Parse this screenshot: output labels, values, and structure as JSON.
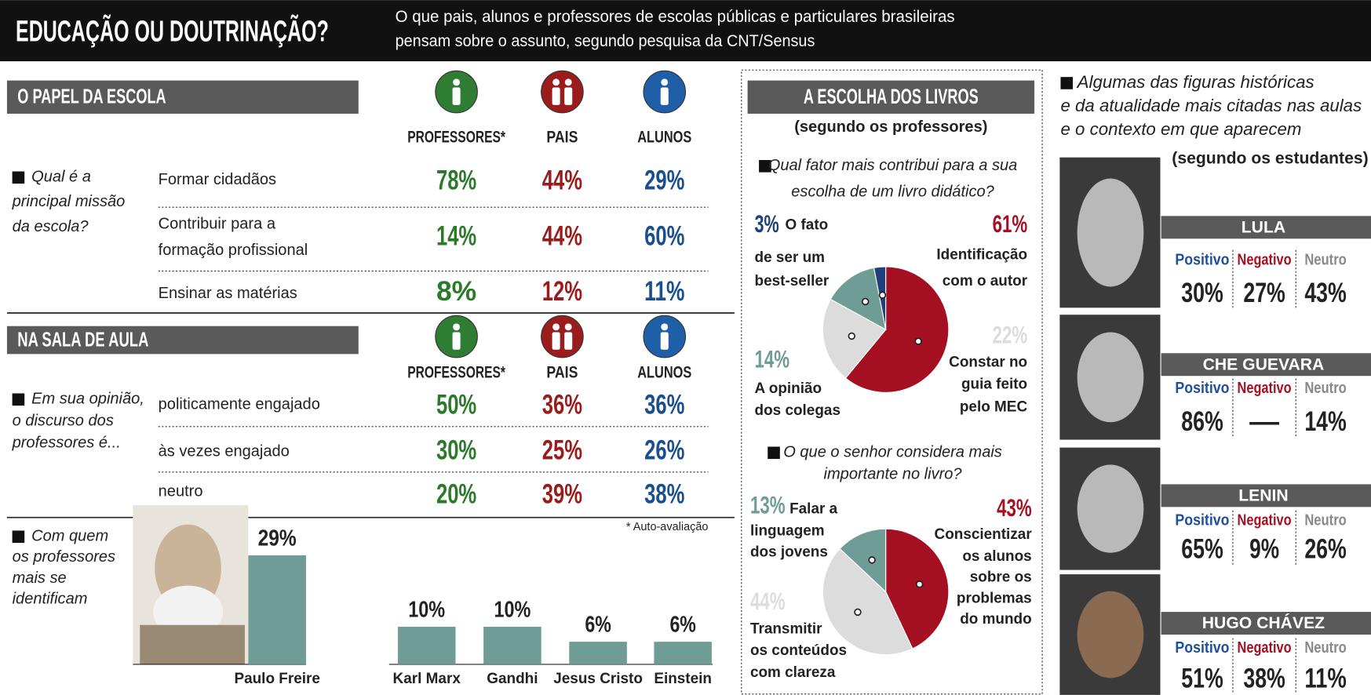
{
  "header": {
    "title": "EDUCAÇÃO OU DOUTRINAÇÃO?",
    "subtitle": [
      "O que pais, alunos e professores de escolas públicas e particulares brasileiras",
      "pensam sobre o assunto, segundo pesquisa da CNT/Sensus"
    ]
  },
  "columns": [
    "PROFESSORES*",
    "PAIS",
    "ALUNOS"
  ],
  "papel_da_escola": {
    "title": "O PAPEL DA ESCOLA",
    "question": [
      "Qual é a",
      "principal missão",
      "da escola?"
    ],
    "rows": [
      {
        "label": [
          "Formar cidadãos"
        ],
        "values": [
          "78%",
          "44%",
          "29%"
        ]
      },
      {
        "label": [
          "Contribuir para a",
          "formação profissional"
        ],
        "values": [
          "14%",
          "44%",
          "60%"
        ]
      },
      {
        "label": [
          "Ensinar as matérias"
        ],
        "values": [
          "8%",
          "12%",
          "11%"
        ]
      }
    ]
  },
  "sala_de_aula": {
    "title": "NA SALA DE AULA",
    "question": [
      "Em sua opinião,",
      "o discurso dos",
      "professores é..."
    ],
    "rows": [
      {
        "label": [
          "politicamente engajado"
        ],
        "values": [
          "50%",
          "36%",
          "36%"
        ]
      },
      {
        "label": [
          "às vezes engajado"
        ],
        "values": [
          "30%",
          "25%",
          "26%"
        ]
      },
      {
        "label": [
          "neutro"
        ],
        "values": [
          "20%",
          "39%",
          "38%"
        ]
      }
    ],
    "footnote": "* Auto-avaliação"
  },
  "livros": {
    "title": "A ESCOLHA DOS LIVROS",
    "subtitle": "(segundo os professores)"
  },
  "chart_data": [
    {
      "type": "bar",
      "title": [
        "Com quem",
        "os professores",
        "mais se",
        "identificam"
      ],
      "categories": [
        "Paulo Freire",
        "Karl Marx",
        "Gandhi",
        "Jesus Cristo",
        "Einstein"
      ],
      "values": [
        29,
        10,
        10,
        6,
        6
      ],
      "value_labels": [
        "29%",
        "10%",
        "10%",
        "6%",
        "6%"
      ],
      "color": "#6f9c94"
    },
    {
      "type": "pie",
      "title": [
        "Qual fator mais contribui para a sua",
        "escolha de um livro didático?"
      ],
      "categories": [
        [
          "Identificação",
          "com o autor"
        ],
        [
          "Constar no",
          "guia feito",
          "pelo MEC"
        ],
        [
          "A opinião",
          "dos colegas"
        ],
        [
          "O fato",
          "de ser um",
          "best-seller"
        ]
      ],
      "values": [
        61,
        22,
        14,
        3
      ],
      "value_labels": [
        "61%",
        "22%",
        "14%",
        "3%"
      ],
      "colors": [
        "#a50f22",
        "#dcdcdc",
        "#6f9c94",
        "#1f3f7a"
      ]
    },
    {
      "type": "pie",
      "title": [
        "O que o senhor considera mais",
        "importante no livro?"
      ],
      "categories": [
        [
          "Conscientizar",
          "os alunos",
          "sobre os",
          "problemas",
          "do mundo"
        ],
        [
          "Transmitir",
          "os conteúdos",
          "com clareza"
        ],
        [
          "Falar a",
          "linguagem",
          "dos jovens"
        ]
      ],
      "values": [
        43,
        44,
        13
      ],
      "value_labels": [
        "43%",
        "44%",
        "13%"
      ],
      "colors": [
        "#a50f22",
        "#dcdcdc",
        "#6f9c94"
      ]
    }
  ],
  "figuras": {
    "intro": [
      "Algumas das figuras históricas",
      "e da atualidade mais citadas nas aulas",
      "e o contexto em que aparecem"
    ],
    "source": "(segundo os estudantes)",
    "headers": [
      "Positivo",
      "Negativo",
      "Neutro"
    ],
    "people": [
      {
        "name": "LULA",
        "values": [
          "30%",
          "27%",
          "43%"
        ]
      },
      {
        "name": "CHE GUEVARA",
        "values": [
          "86%",
          "—",
          "14%"
        ]
      },
      {
        "name": "LENIN",
        "values": [
          "65%",
          "9%",
          "26%"
        ]
      },
      {
        "name": "HUGO CHÁVEZ",
        "values": [
          "51%",
          "38%",
          "11%"
        ]
      }
    ]
  }
}
